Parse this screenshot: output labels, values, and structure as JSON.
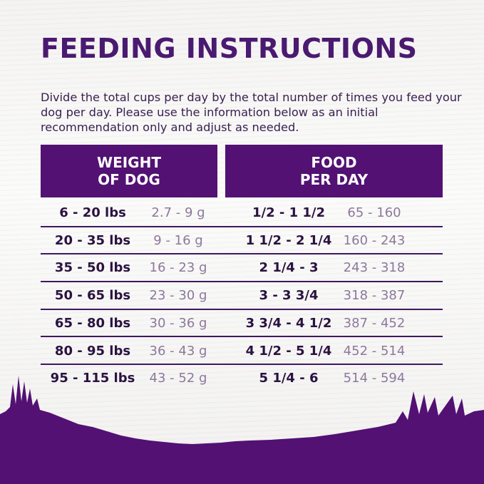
{
  "title": "FEEDING INSTRUCTIONS",
  "intro": "Divide the total cups per day by the total number of times you feed your dog per day. Please use the information below as an initial recommendation only and adjust as needed.",
  "headers": {
    "weight": [
      "WEIGHT",
      "OF DOG"
    ],
    "food": [
      "FOOD",
      "PER DAY"
    ]
  },
  "rows": [
    {
      "weight": "6 - 20 lbs",
      "grams": "2.7 - 9 g",
      "cups": "1/2 - 1 1/2",
      "calories": "65 - 160"
    },
    {
      "weight": "20 - 35 lbs",
      "grams": "9 - 16 g",
      "cups": "1 1/2 - 2 1/4",
      "calories": "160 - 243"
    },
    {
      "weight": "35 - 50 lbs",
      "grams": "16 - 23 g",
      "cups": "2 1/4 - 3",
      "calories": "243 - 318"
    },
    {
      "weight": "50 - 65 lbs",
      "grams": "23 - 30 g",
      "cups": "3 - 3 3/4",
      "calories": "318 - 387"
    },
    {
      "weight": "65 - 80 lbs",
      "grams": "30 - 36 g",
      "cups": "3 3/4 - 4 1/2",
      "calories": "387 - 452"
    },
    {
      "weight": "80 - 95 lbs",
      "grams": "36 - 43 g",
      "cups": "4 1/2 - 5 1/4",
      "calories": "452 - 514"
    },
    {
      "weight": "95 - 115 lbs",
      "grams": "43 - 52 g",
      "cups": "5 1/4 - 6",
      "calories": "514 - 594"
    }
  ],
  "colors": {
    "brand_purple": "#521173",
    "text_dark": "#2b1240",
    "text_grey": "#8d789b"
  }
}
